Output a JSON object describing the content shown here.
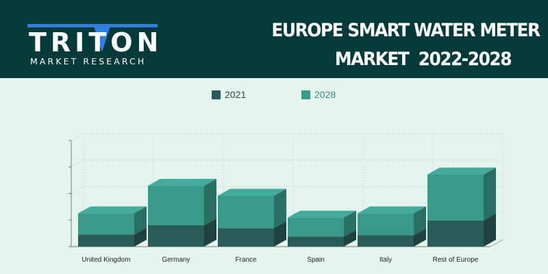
{
  "brand": {
    "logo_text": "TRITON",
    "subtitle": "MARKET RESEARCH",
    "colors": {
      "navy": "#06393a",
      "blue": "#2f7fe0"
    }
  },
  "report": {
    "title_line1": "EUROPE SMART WATER METER",
    "title_line2": "MARKET  2022-2028"
  },
  "chart_data": {
    "type": "bar",
    "stacked": true,
    "three_d": true,
    "categories": [
      "United Kingdom",
      "Germany",
      "France",
      "Spain",
      "Italy",
      "Rest of Europe"
    ],
    "series": [
      {
        "name": "2021",
        "values": [
          17,
          30,
          26,
          14,
          16,
          37
        ],
        "color": "#2b5b57"
      },
      {
        "name": "2028",
        "values": [
          30,
          56,
          46,
          27,
          31,
          65
        ],
        "color": "#3a9a8a"
      }
    ],
    "ylim": [
      0,
      150
    ],
    "ytick_count": 4,
    "grid": true,
    "legend_position": "top-center",
    "xlabel": "",
    "ylabel": ""
  }
}
